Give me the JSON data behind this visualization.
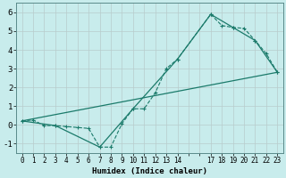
{
  "xlabel": "Humidex (Indice chaleur)",
  "background_color": "#c8ecec",
  "grid_color": "#c8d8d8",
  "line_color": "#1a7a6a",
  "xlim": [
    -0.5,
    23.5
  ],
  "ylim": [
    -1.5,
    6.5
  ],
  "yticks": [
    -1,
    0,
    1,
    2,
    3,
    4,
    5,
    6
  ],
  "xtick_labels": [
    "0",
    "1",
    "2",
    "3",
    "4",
    "5",
    "6",
    "7",
    "8",
    "9",
    "10",
    "11",
    "12",
    "13",
    "14",
    "",
    "",
    "17",
    "18",
    "19",
    "20",
    "21",
    "22",
    "23"
  ],
  "series1_x": [
    0,
    1,
    2,
    3,
    4,
    5,
    6,
    7,
    8,
    9,
    10,
    11,
    12,
    13,
    14,
    17,
    18,
    19,
    20,
    21,
    22,
    23
  ],
  "series1_y": [
    0.2,
    0.25,
    -0.05,
    -0.05,
    -0.1,
    -0.15,
    -0.2,
    -1.2,
    -1.2,
    0.05,
    0.85,
    0.85,
    1.7,
    3.0,
    3.5,
    5.9,
    5.3,
    5.2,
    5.15,
    4.5,
    3.8,
    2.8
  ],
  "series2_x": [
    0,
    3,
    7,
    10,
    14,
    17,
    19,
    21,
    23
  ],
  "series2_y": [
    0.2,
    -0.05,
    -1.2,
    0.85,
    3.5,
    5.9,
    5.2,
    4.5,
    2.8
  ],
  "series3_x": [
    0,
    23
  ],
  "series3_y": [
    0.2,
    2.8
  ]
}
